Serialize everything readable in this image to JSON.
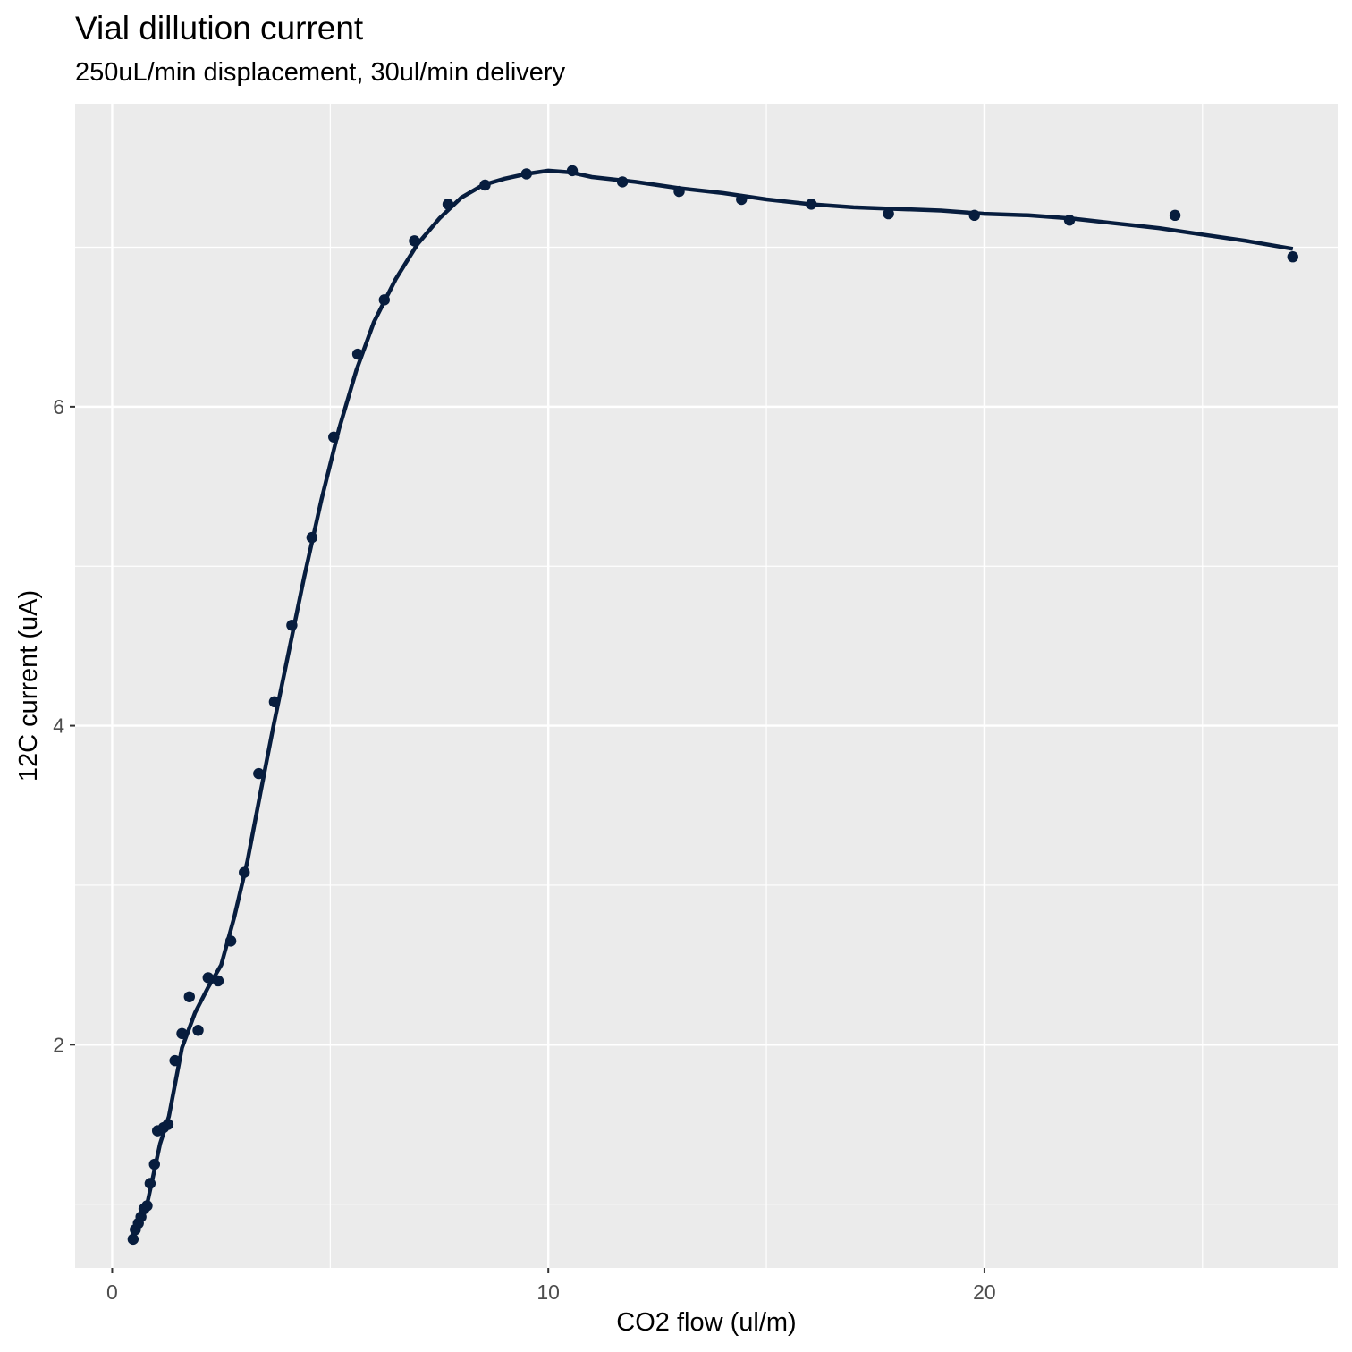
{
  "chart_data": {
    "type": "scatter",
    "title": "Vial dillution current",
    "subtitle": "250uL/min displacement, 30ul/min delivery",
    "xlabel": "CO2 flow (ul/m)",
    "ylabel": "12C current (uA)",
    "xlim": [
      -0.85,
      28.1
    ],
    "ylim": [
      0.6,
      7.9
    ],
    "x_ticks": [
      0,
      10,
      20
    ],
    "x_tick_labels": [
      "0",
      "10",
      "20"
    ],
    "x_minor_ticks": [
      5,
      15,
      25
    ],
    "y_ticks": [
      2,
      4,
      6
    ],
    "y_tick_labels": [
      "2",
      "4",
      "6"
    ],
    "y_minor_ticks": [
      1,
      3,
      5,
      7
    ],
    "grid": true,
    "background": "#ebebeb",
    "grid_color": "#ffffff",
    "series_color": "#071d3e",
    "points": [
      {
        "x": 0.48,
        "y": 0.78
      },
      {
        "x": 0.53,
        "y": 0.84
      },
      {
        "x": 0.6,
        "y": 0.88
      },
      {
        "x": 0.66,
        "y": 0.92
      },
      {
        "x": 0.73,
        "y": 0.97
      },
      {
        "x": 0.8,
        "y": 0.99
      },
      {
        "x": 0.87,
        "y": 1.13
      },
      {
        "x": 0.97,
        "y": 1.25
      },
      {
        "x": 1.04,
        "y": 1.46
      },
      {
        "x": 1.18,
        "y": 1.48
      },
      {
        "x": 1.28,
        "y": 1.5
      },
      {
        "x": 1.44,
        "y": 1.9
      },
      {
        "x": 1.6,
        "y": 2.07
      },
      {
        "x": 1.77,
        "y": 2.3
      },
      {
        "x": 1.97,
        "y": 2.09
      },
      {
        "x": 2.2,
        "y": 2.42
      },
      {
        "x": 2.43,
        "y": 2.4
      },
      {
        "x": 2.72,
        "y": 2.65
      },
      {
        "x": 3.03,
        "y": 3.08
      },
      {
        "x": 3.36,
        "y": 3.7
      },
      {
        "x": 3.72,
        "y": 4.15
      },
      {
        "x": 4.12,
        "y": 4.63
      },
      {
        "x": 4.58,
        "y": 5.18
      },
      {
        "x": 5.08,
        "y": 5.81
      },
      {
        "x": 5.63,
        "y": 6.33
      },
      {
        "x": 6.24,
        "y": 6.67
      },
      {
        "x": 6.93,
        "y": 7.04
      },
      {
        "x": 7.7,
        "y": 7.27
      },
      {
        "x": 8.55,
        "y": 7.39
      },
      {
        "x": 9.5,
        "y": 7.46
      },
      {
        "x": 10.55,
        "y": 7.48
      },
      {
        "x": 11.7,
        "y": 7.41
      },
      {
        "x": 13.0,
        "y": 7.35
      },
      {
        "x": 14.43,
        "y": 7.3
      },
      {
        "x": 16.03,
        "y": 7.27
      },
      {
        "x": 17.8,
        "y": 7.21
      },
      {
        "x": 19.77,
        "y": 7.2
      },
      {
        "x": 21.95,
        "y": 7.17
      },
      {
        "x": 24.37,
        "y": 7.2
      },
      {
        "x": 27.07,
        "y": 6.94
      }
    ],
    "smooth": [
      {
        "x": 0.48,
        "y": 0.82
      },
      {
        "x": 0.8,
        "y": 1.0
      },
      {
        "x": 1.1,
        "y": 1.38
      },
      {
        "x": 1.3,
        "y": 1.55
      },
      {
        "x": 1.6,
        "y": 1.98
      },
      {
        "x": 1.9,
        "y": 2.2
      },
      {
        "x": 2.2,
        "y": 2.36
      },
      {
        "x": 2.5,
        "y": 2.5
      },
      {
        "x": 2.8,
        "y": 2.8
      },
      {
        "x": 3.1,
        "y": 3.15
      },
      {
        "x": 3.4,
        "y": 3.58
      },
      {
        "x": 3.7,
        "y": 4.0
      },
      {
        "x": 4.0,
        "y": 4.4
      },
      {
        "x": 4.4,
        "y": 4.93
      },
      {
        "x": 4.8,
        "y": 5.42
      },
      {
        "x": 5.2,
        "y": 5.86
      },
      {
        "x": 5.6,
        "y": 6.23
      },
      {
        "x": 6.0,
        "y": 6.53
      },
      {
        "x": 6.5,
        "y": 6.8
      },
      {
        "x": 7.0,
        "y": 7.02
      },
      {
        "x": 7.5,
        "y": 7.18
      },
      {
        "x": 8.0,
        "y": 7.31
      },
      {
        "x": 8.5,
        "y": 7.39
      },
      {
        "x": 9.0,
        "y": 7.43
      },
      {
        "x": 9.5,
        "y": 7.46
      },
      {
        "x": 10.0,
        "y": 7.48
      },
      {
        "x": 10.5,
        "y": 7.47
      },
      {
        "x": 11.0,
        "y": 7.44
      },
      {
        "x": 12.0,
        "y": 7.41
      },
      {
        "x": 13.0,
        "y": 7.37
      },
      {
        "x": 14.0,
        "y": 7.34
      },
      {
        "x": 15.0,
        "y": 7.3
      },
      {
        "x": 16.0,
        "y": 7.27
      },
      {
        "x": 17.0,
        "y": 7.25
      },
      {
        "x": 18.0,
        "y": 7.24
      },
      {
        "x": 19.0,
        "y": 7.23
      },
      {
        "x": 20.0,
        "y": 7.21
      },
      {
        "x": 21.0,
        "y": 7.2
      },
      {
        "x": 22.0,
        "y": 7.18
      },
      {
        "x": 23.0,
        "y": 7.15
      },
      {
        "x": 24.0,
        "y": 7.12
      },
      {
        "x": 25.0,
        "y": 7.08
      },
      {
        "x": 26.0,
        "y": 7.04
      },
      {
        "x": 27.07,
        "y": 6.99
      }
    ]
  }
}
